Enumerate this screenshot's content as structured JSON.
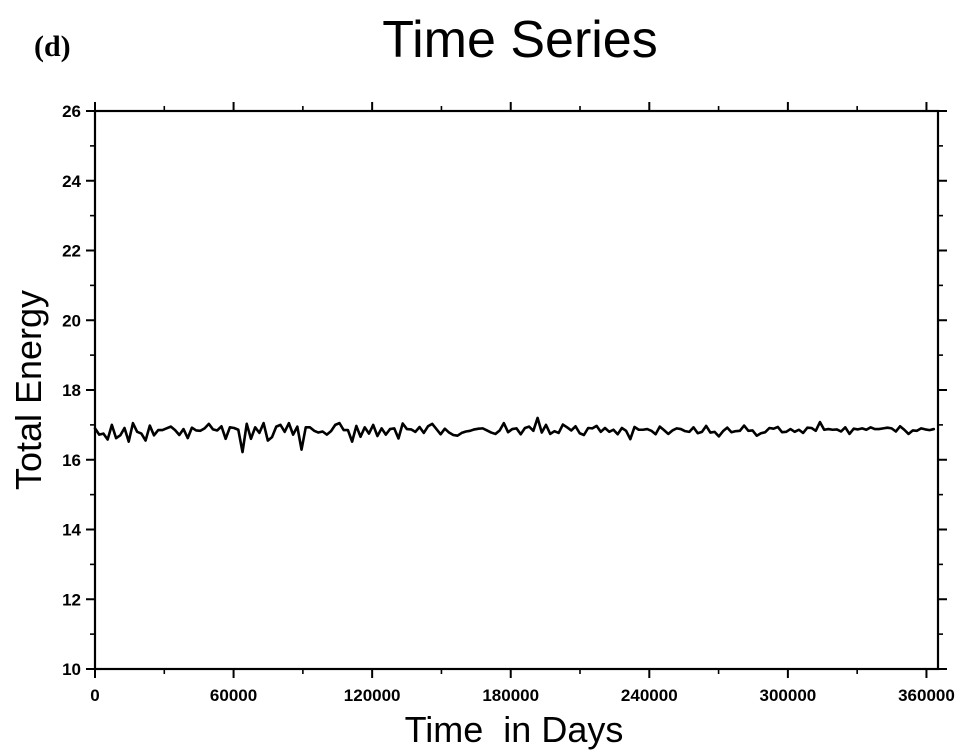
{
  "figure": {
    "panel_label": "(d)"
  },
  "chart_data": {
    "type": "line",
    "title": "Time Series",
    "xlabel": "Time  in Days",
    "ylabel": "Total Energy",
    "xlim": [
      0,
      365000
    ],
    "ylim": [
      10,
      26
    ],
    "grid": false,
    "legend": "none",
    "line_color": "#000000",
    "x_ticks": [
      0,
      60000,
      120000,
      180000,
      240000,
      300000,
      360000
    ],
    "x_tick_labels": [
      "0",
      "60000",
      "120000",
      "180000",
      "240000",
      "300000",
      "360000"
    ],
    "y_ticks": [
      10,
      12,
      14,
      16,
      18,
      20,
      22,
      24,
      26
    ],
    "y_tick_labels": [
      "10",
      "12",
      "14",
      "16",
      "18",
      "20",
      "22",
      "24",
      "26"
    ],
    "x_step": 1825,
    "series": [
      {
        "values": [
          16.9,
          16.72,
          16.75,
          16.58,
          17.0,
          16.62,
          16.7,
          16.91,
          16.52,
          17.05,
          16.8,
          16.75,
          16.55,
          16.98,
          16.7,
          16.85,
          16.85,
          16.9,
          16.95,
          16.85,
          16.71,
          16.88,
          16.62,
          16.92,
          16.84,
          16.83,
          16.9,
          17.03,
          16.87,
          16.84,
          16.96,
          16.6,
          16.93,
          16.91,
          16.86,
          16.22,
          17.03,
          16.6,
          16.93,
          16.77,
          17.05,
          16.55,
          16.65,
          16.95,
          17.0,
          16.8,
          17.05,
          16.72,
          16.95,
          16.29,
          16.93,
          16.93,
          16.83,
          16.78,
          16.81,
          16.72,
          16.82,
          17.0,
          17.05,
          16.85,
          16.85,
          16.52,
          16.97,
          16.66,
          16.93,
          16.75,
          17.0,
          16.68,
          16.9,
          16.72,
          16.88,
          16.9,
          16.61,
          17.04,
          16.88,
          16.87,
          16.8,
          16.94,
          16.77,
          16.96,
          17.03,
          16.88,
          16.73,
          16.89,
          16.78,
          16.71,
          16.69,
          16.77,
          16.81,
          16.83,
          16.87,
          16.89,
          16.9,
          16.84,
          16.78,
          16.74,
          16.84,
          17.05,
          16.79,
          16.88,
          16.9,
          16.73,
          16.91,
          16.95,
          16.83,
          17.2,
          16.78,
          17.0,
          16.74,
          16.82,
          16.77,
          17.01,
          16.93,
          16.84,
          16.96,
          16.76,
          16.71,
          16.91,
          16.9,
          16.97,
          16.8,
          16.91,
          16.8,
          16.86,
          16.73,
          16.91,
          16.83,
          16.59,
          16.94,
          16.86,
          16.86,
          16.88,
          16.83,
          16.73,
          16.95,
          16.85,
          16.74,
          16.84,
          16.9,
          16.88,
          16.82,
          16.8,
          16.93,
          16.76,
          16.8,
          16.97,
          16.78,
          16.8,
          16.67,
          16.82,
          16.92,
          16.79,
          16.82,
          16.83,
          16.98,
          16.83,
          16.84,
          16.69,
          16.76,
          16.79,
          16.91,
          16.89,
          16.94,
          16.79,
          16.8,
          16.88,
          16.8,
          16.86,
          16.77,
          16.92,
          16.91,
          16.83,
          17.08,
          16.86,
          16.88,
          16.86,
          16.87,
          16.81,
          16.93,
          16.74,
          16.89,
          16.87,
          16.9,
          16.86,
          16.93,
          16.88,
          16.88,
          16.9,
          16.92,
          16.9,
          16.81,
          16.96,
          16.86,
          16.74,
          16.84,
          16.83,
          16.9,
          16.87,
          16.85,
          16.88
        ]
      }
    ]
  }
}
